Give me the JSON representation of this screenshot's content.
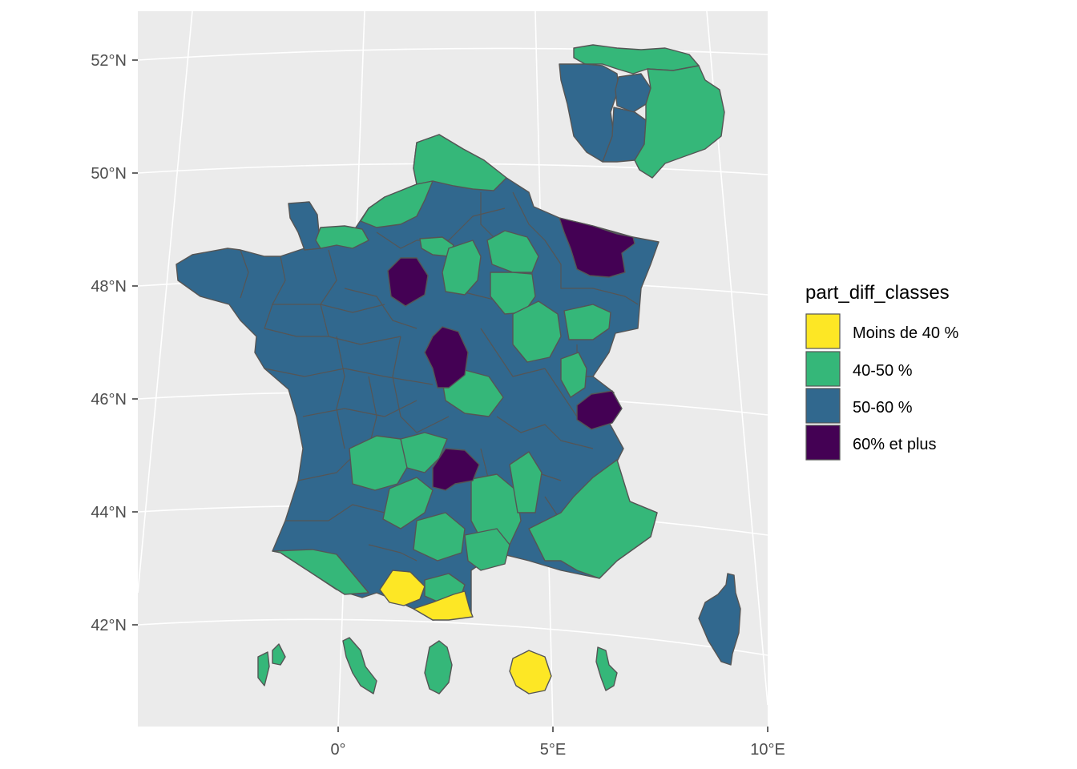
{
  "map": {
    "y_ticks": [
      "52°N",
      "50°N",
      "48°N",
      "46°N",
      "44°N",
      "42°N"
    ],
    "x_ticks": [
      "0°",
      "5°E",
      "10°E"
    ],
    "legend": {
      "title": "part_diff_classes",
      "entries": [
        {
          "label": "Moins de 40 %",
          "color": "#FDE725"
        },
        {
          "label": "40-50 %",
          "color": "#35B779"
        },
        {
          "label": "50-60 %",
          "color": "#31688E"
        },
        {
          "label": "60% et plus",
          "color": "#440154"
        }
      ]
    },
    "colors": {
      "panel": "#EBEBEB",
      "grid": "#FFFFFF",
      "border": "#555555"
    }
  }
}
